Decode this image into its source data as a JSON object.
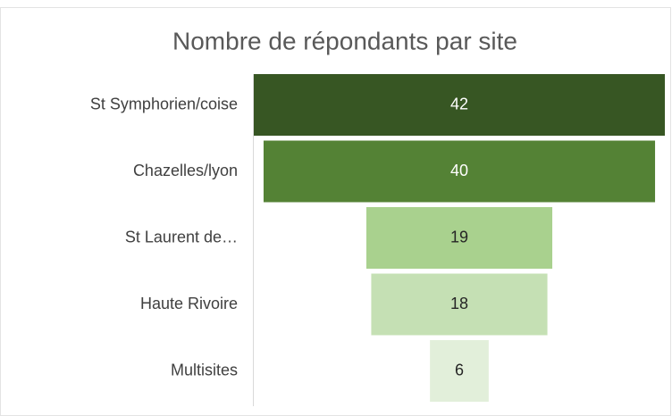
{
  "chart_data": {
    "type": "funnel",
    "title": "Nombre de répondants par site",
    "categories": [
      "St Symphorien/coise",
      "Chazelles/lyon",
      "St Laurent de…",
      "Haute Rivoire",
      "Multisites"
    ],
    "values": [
      42,
      40,
      19,
      18,
      6
    ],
    "colors": [
      "#375623",
      "#548235",
      "#a9d18e",
      "#c5e0b4",
      "#e2efda"
    ]
  }
}
